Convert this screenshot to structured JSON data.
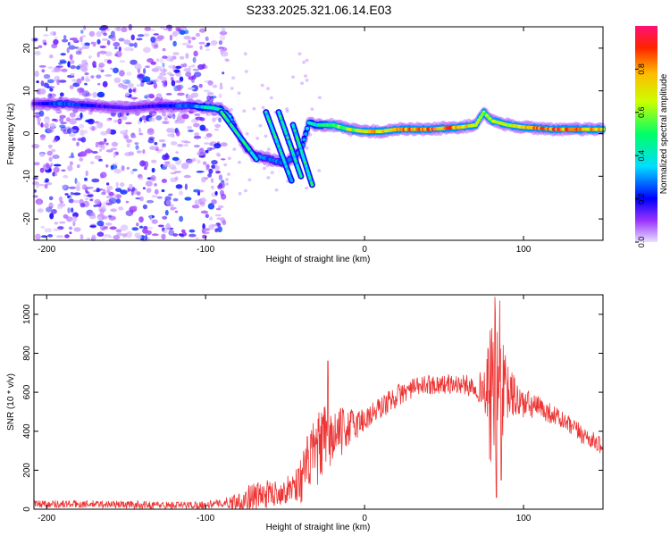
{
  "title": "S233.2025.321.06.14.E03",
  "chart_data": [
    {
      "type": "heatmap",
      "name": "spectrogram",
      "xlabel": "Height of straight line (km)",
      "ylabel": "Frequency (Hz)",
      "xlim": [
        -208,
        150
      ],
      "ylim": [
        -25,
        25
      ],
      "xticks": [
        -200,
        -100,
        0,
        100
      ],
      "yticks": [
        -20,
        -10,
        0,
        10,
        20
      ],
      "colorbar": {
        "label": "Normalized spectral amplitude",
        "range": [
          0,
          1
        ],
        "ticks": [
          "0.0",
          "0.2",
          "0.4",
          "0.6",
          "0.8"
        ],
        "tick_values": [
          0,
          0.2,
          0.4,
          0.6,
          0.8
        ]
      },
      "noise_region": {
        "x": [
          -208,
          -88
        ],
        "y": [
          -25,
          25
        ],
        "amplitude": [
          0.02,
          0.2
        ]
      },
      "tone_track": {
        "x": [
          -208,
          -190,
          -170,
          -150,
          -130,
          -110,
          -95,
          -90,
          -85,
          -80,
          -75,
          -70,
          -60,
          -50,
          -40,
          -35,
          -30,
          -20,
          -10,
          0,
          10,
          20,
          40,
          60,
          70,
          75,
          80,
          90,
          100,
          120,
          150
        ],
        "freq": [
          7,
          7,
          6.5,
          6,
          6.5,
          6.5,
          6,
          5.5,
          4,
          0,
          -3,
          -5,
          -6,
          -7,
          -4,
          2.5,
          2,
          2,
          1,
          0.5,
          0.5,
          1,
          1,
          1.5,
          2,
          5,
          3,
          2,
          1.5,
          1,
          1
        ],
        "amplitude": [
          0.15,
          0.3,
          0.2,
          0.15,
          0.2,
          0.3,
          0.5,
          0.45,
          0.4,
          0.35,
          0.35,
          0.3,
          0.3,
          0.3,
          0.35,
          0.45,
          0.45,
          0.6,
          0.65,
          0.8,
          0.8,
          0.85,
          0.95,
          0.85,
          0.7,
          0.6,
          0.65,
          0.75,
          0.9,
          0.95,
          0.8
        ]
      },
      "diagonal_streaks": [
        {
          "x": [
            -90,
            -68
          ],
          "freq": [
            5,
            -6
          ]
        },
        {
          "x": [
            -62,
            -46
          ],
          "freq": [
            5,
            -11
          ]
        },
        {
          "x": [
            -54,
            -40
          ],
          "freq": [
            5,
            -10
          ]
        },
        {
          "x": [
            -45,
            -33
          ],
          "freq": [
            2,
            -12
          ]
        }
      ]
    },
    {
      "type": "line",
      "name": "snr",
      "xlabel": "Height of straight line (km)",
      "ylabel": "SNR (10 * v/v)",
      "xlim": [
        -208,
        150
      ],
      "ylim": [
        0,
        1100
      ],
      "xticks": [
        -200,
        -100,
        0,
        100
      ],
      "yticks": [
        0,
        200,
        400,
        600,
        800,
        1000
      ],
      "color": "#ee3333",
      "envelope": {
        "x": [
          -208,
          -160,
          -120,
          -100,
          -90,
          -80,
          -70,
          -60,
          -50,
          -40,
          -35,
          -30,
          -25,
          -20,
          -10,
          0,
          10,
          20,
          30,
          40,
          50,
          60,
          70,
          75,
          78,
          80,
          82,
          85,
          90,
          100,
          110,
          120,
          130,
          140,
          150
        ],
        "y": [
          28,
          25,
          20,
          22,
          30,
          40,
          60,
          80,
          90,
          150,
          250,
          300,
          350,
          370,
          420,
          460,
          520,
          580,
          620,
          640,
          640,
          640,
          630,
          620,
          560,
          600,
          620,
          620,
          600,
          540,
          520,
          480,
          420,
          370,
          320
        ],
        "noise": [
          20,
          20,
          20,
          20,
          20,
          50,
          80,
          70,
          60,
          120,
          160,
          180,
          200,
          150,
          100,
          70,
          60,
          60,
          50,
          50,
          50,
          50,
          60,
          100,
          300,
          400,
          400,
          300,
          150,
          80,
          60,
          50,
          50,
          50,
          40
        ]
      },
      "spikes": [
        {
          "x": -23,
          "y": 760
        },
        {
          "x": 82,
          "y": 1090
        },
        {
          "x": 85,
          "y": 1070
        },
        {
          "x": 83,
          "y": 60
        },
        {
          "x": 86,
          "y": 150
        }
      ]
    }
  ]
}
